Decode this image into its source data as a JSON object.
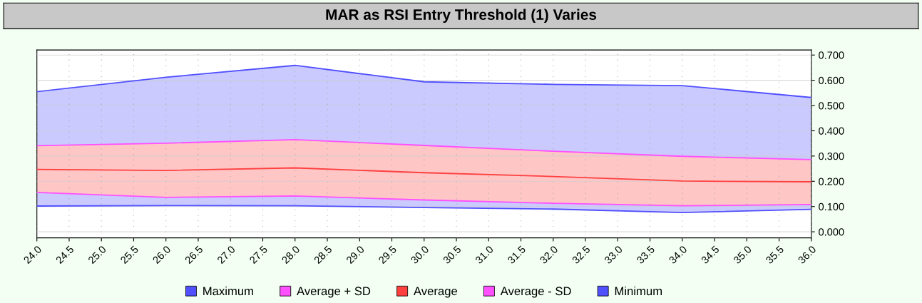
{
  "chart_data": {
    "type": "line",
    "title": "MAR as RSI Entry Threshold (1) Varies",
    "x": [
      24,
      26,
      28,
      30,
      32,
      34,
      36
    ],
    "series": [
      {
        "name": "Maximum",
        "color": "#5050ff",
        "values": [
          0.555,
          0.612,
          0.659,
          0.594,
          0.584,
          0.579,
          0.532
        ],
        "lower": [
          0.102,
          0.104,
          0.103,
          0.096,
          0.09,
          0.076,
          0.089
        ],
        "upper": [
          0.555,
          0.612,
          0.659,
          0.594,
          0.584,
          0.579,
          0.532
        ]
      },
      {
        "name": "Average + SD",
        "color": "#ff50ff",
        "values": [
          0.341,
          0.351,
          0.365,
          0.342,
          0.319,
          0.299,
          0.286
        ]
      },
      {
        "name": "Average",
        "color": "#ff4040",
        "values": [
          0.247,
          0.243,
          0.253,
          0.234,
          0.219,
          0.201,
          0.198
        ],
        "lower": [
          0.156,
          0.136,
          0.142,
          0.126,
          0.113,
          0.103,
          0.108
        ],
        "upper": [
          0.341,
          0.351,
          0.365,
          0.342,
          0.319,
          0.299,
          0.286
        ]
      },
      {
        "name": "Average - SD",
        "color": "#ff50ff",
        "values": [
          0.156,
          0.136,
          0.142,
          0.126,
          0.113,
          0.103,
          0.108
        ]
      },
      {
        "name": "Minimum",
        "color": "#5050ff",
        "values": [
          0.102,
          0.104,
          0.103,
          0.096,
          0.09,
          0.076,
          0.089
        ]
      }
    ],
    "xlim": [
      24,
      36
    ],
    "xticks": [
      {
        "value": 24,
        "label": "24.0"
      },
      {
        "value": 24.5,
        "label": "24.5"
      },
      {
        "value": 25,
        "label": "25.0"
      },
      {
        "value": 25.5,
        "label": "25.5"
      },
      {
        "value": 26,
        "label": "26.0"
      },
      {
        "value": 26.5,
        "label": "26.5"
      },
      {
        "value": 27,
        "label": "27.0"
      },
      {
        "value": 27.5,
        "label": "27.5"
      },
      {
        "value": 28,
        "label": "28.0"
      },
      {
        "value": 28.5,
        "label": "28.5"
      },
      {
        "value": 29,
        "label": "29.0"
      },
      {
        "value": 29.5,
        "label": "29.5"
      },
      {
        "value": 30,
        "label": "30.0"
      },
      {
        "value": 30.5,
        "label": "30.5"
      },
      {
        "value": 31,
        "label": "31.0"
      },
      {
        "value": 31.5,
        "label": "31.5"
      },
      {
        "value": 32,
        "label": "32.0"
      },
      {
        "value": 32.5,
        "label": "32.5"
      },
      {
        "value": 33,
        "label": "33.0"
      },
      {
        "value": 33.5,
        "label": "33.5"
      },
      {
        "value": 34,
        "label": "34.0"
      },
      {
        "value": 34.5,
        "label": "34.5"
      },
      {
        "value": 35,
        "label": "35.0"
      },
      {
        "value": 35.5,
        "label": "35.5"
      },
      {
        "value": 36,
        "label": "36.0"
      }
    ],
    "ylim": [
      -0.024,
      0.72
    ],
    "yticks": [
      {
        "value": 0,
        "label": "0.000"
      },
      {
        "value": 0.1,
        "label": "0.100"
      },
      {
        "value": 0.2,
        "label": "0.200"
      },
      {
        "value": 0.3,
        "label": "0.300"
      },
      {
        "value": 0.4,
        "label": "0.400"
      },
      {
        "value": 0.5,
        "label": "0.500"
      },
      {
        "value": 0.6,
        "label": "0.600"
      },
      {
        "value": 0.7,
        "label": "0.700"
      }
    ],
    "grid": true,
    "legend": "bottom",
    "marker": "none",
    "line_style": "solid"
  }
}
